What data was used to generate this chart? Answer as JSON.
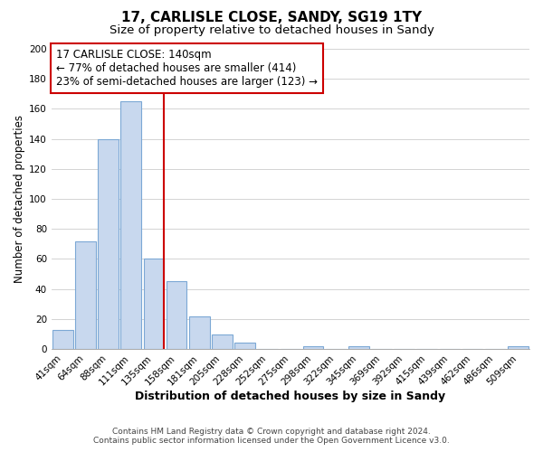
{
  "title": "17, CARLISLE CLOSE, SANDY, SG19 1TY",
  "subtitle": "Size of property relative to detached houses in Sandy",
  "xlabel": "Distribution of detached houses by size in Sandy",
  "ylabel": "Number of detached properties",
  "footer_line1": "Contains HM Land Registry data © Crown copyright and database right 2024.",
  "footer_line2": "Contains public sector information licensed under the Open Government Licence v3.0.",
  "bar_labels": [
    "41sqm",
    "64sqm",
    "88sqm",
    "111sqm",
    "135sqm",
    "158sqm",
    "181sqm",
    "205sqm",
    "228sqm",
    "252sqm",
    "275sqm",
    "298sqm",
    "322sqm",
    "345sqm",
    "369sqm",
    "392sqm",
    "415sqm",
    "439sqm",
    "462sqm",
    "486sqm",
    "509sqm"
  ],
  "bar_values": [
    13,
    72,
    140,
    165,
    60,
    45,
    22,
    10,
    4,
    0,
    0,
    2,
    0,
    2,
    0,
    0,
    0,
    0,
    0,
    0,
    2
  ],
  "bar_color": "#c8d8ee",
  "bar_edge_color": "#7ca8d5",
  "vline_color": "#cc0000",
  "annotation_title": "17 CARLISLE CLOSE: 140sqm",
  "annotation_line1": "← 77% of detached houses are smaller (414)",
  "annotation_line2": "23% of semi-detached houses are larger (123) →",
  "annotation_box_color": "#ffffff",
  "annotation_box_edge_color": "#cc0000",
  "ylim": [
    0,
    200
  ],
  "yticks": [
    0,
    20,
    40,
    60,
    80,
    100,
    120,
    140,
    160,
    180,
    200
  ],
  "grid_color": "#cccccc",
  "background_color": "#ffffff",
  "plot_bg_color": "#ffffff",
  "title_fontsize": 11,
  "subtitle_fontsize": 9.5,
  "xlabel_fontsize": 9,
  "ylabel_fontsize": 8.5,
  "tick_fontsize": 7.5,
  "annotation_fontsize": 8.5,
  "footer_fontsize": 6.5
}
